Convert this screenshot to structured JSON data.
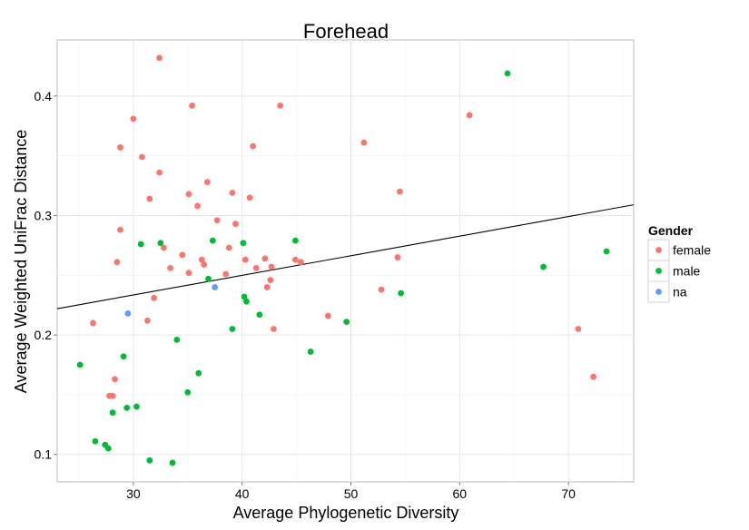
{
  "chart_data": {
    "type": "scatter",
    "title": "Forehead",
    "xlabel": "Average Phylogenetic Diversity",
    "ylabel": "Average Weighted UniFrac Distance",
    "xlim": [
      23,
      76
    ],
    "ylim": [
      0.077,
      0.447
    ],
    "x_ticks": [
      30,
      40,
      50,
      60,
      70
    ],
    "y_ticks": [
      0.1,
      0.2,
      0.3,
      0.4
    ],
    "x_tick_labels": [
      "30",
      "40",
      "50",
      "60",
      "70"
    ],
    "y_tick_labels": [
      "0.1",
      "0.2",
      "0.3",
      "0.4"
    ],
    "grid": true,
    "legend_position": "right",
    "legend_title": "Gender",
    "trend_line": {
      "x": [
        23,
        76
      ],
      "y": [
        0.222,
        0.309
      ]
    },
    "series": [
      {
        "name": "female",
        "color": "#F8766D",
        "points": [
          [
            26.3,
            0.21
          ],
          [
            27.8,
            0.149
          ],
          [
            28.1,
            0.149
          ],
          [
            28.3,
            0.163
          ],
          [
            28.5,
            0.261
          ],
          [
            28.8,
            0.288
          ],
          [
            28.8,
            0.357
          ],
          [
            30.0,
            0.381
          ],
          [
            30.8,
            0.349
          ],
          [
            31.3,
            0.212
          ],
          [
            31.5,
            0.314
          ],
          [
            31.9,
            0.231
          ],
          [
            32.4,
            0.336
          ],
          [
            32.4,
            0.432
          ],
          [
            32.8,
            0.273
          ],
          [
            33.4,
            0.256
          ],
          [
            34.5,
            0.267
          ],
          [
            35.1,
            0.252
          ],
          [
            35.1,
            0.318
          ],
          [
            35.4,
            0.392
          ],
          [
            35.9,
            0.308
          ],
          [
            36.3,
            0.263
          ],
          [
            36.5,
            0.259
          ],
          [
            36.8,
            0.328
          ],
          [
            37.7,
            0.296
          ],
          [
            38.5,
            0.251
          ],
          [
            38.8,
            0.273
          ],
          [
            39.1,
            0.319
          ],
          [
            39.4,
            0.293
          ],
          [
            40.3,
            0.263
          ],
          [
            40.7,
            0.315
          ],
          [
            41.0,
            0.358
          ],
          [
            41.3,
            0.256
          ],
          [
            42.1,
            0.264
          ],
          [
            42.3,
            0.24
          ],
          [
            42.6,
            0.246
          ],
          [
            42.7,
            0.257
          ],
          [
            42.9,
            0.205
          ],
          [
            43.5,
            0.392
          ],
          [
            44.9,
            0.263
          ],
          [
            45.4,
            0.261
          ],
          [
            47.9,
            0.216
          ],
          [
            51.2,
            0.361
          ],
          [
            52.8,
            0.238
          ],
          [
            54.3,
            0.265
          ],
          [
            54.5,
            0.32
          ],
          [
            60.9,
            0.384
          ],
          [
            70.9,
            0.205
          ],
          [
            72.3,
            0.165
          ]
        ]
      },
      {
        "name": "male",
        "color": "#00BA38",
        "points": [
          [
            25.1,
            0.175
          ],
          [
            26.5,
            0.111
          ],
          [
            27.4,
            0.108
          ],
          [
            27.7,
            0.105
          ],
          [
            28.1,
            0.135
          ],
          [
            29.1,
            0.182
          ],
          [
            29.4,
            0.139
          ],
          [
            30.3,
            0.14
          ],
          [
            30.7,
            0.276
          ],
          [
            31.5,
            0.095
          ],
          [
            32.5,
            0.277
          ],
          [
            33.6,
            0.093
          ],
          [
            34.0,
            0.196
          ],
          [
            35.0,
            0.152
          ],
          [
            36.0,
            0.168
          ],
          [
            36.9,
            0.247
          ],
          [
            37.3,
            0.279
          ],
          [
            39.1,
            0.205
          ],
          [
            40.1,
            0.277
          ],
          [
            40.2,
            0.232
          ],
          [
            40.4,
            0.228
          ],
          [
            41.6,
            0.217
          ],
          [
            44.9,
            0.279
          ],
          [
            46.3,
            0.186
          ],
          [
            49.6,
            0.211
          ],
          [
            54.6,
            0.235
          ],
          [
            64.4,
            0.419
          ],
          [
            67.7,
            0.257
          ],
          [
            73.5,
            0.27
          ]
        ]
      },
      {
        "name": "na",
        "color": "#619CFF",
        "points": [
          [
            29.5,
            0.218
          ],
          [
            37.5,
            0.24
          ]
        ]
      }
    ]
  }
}
